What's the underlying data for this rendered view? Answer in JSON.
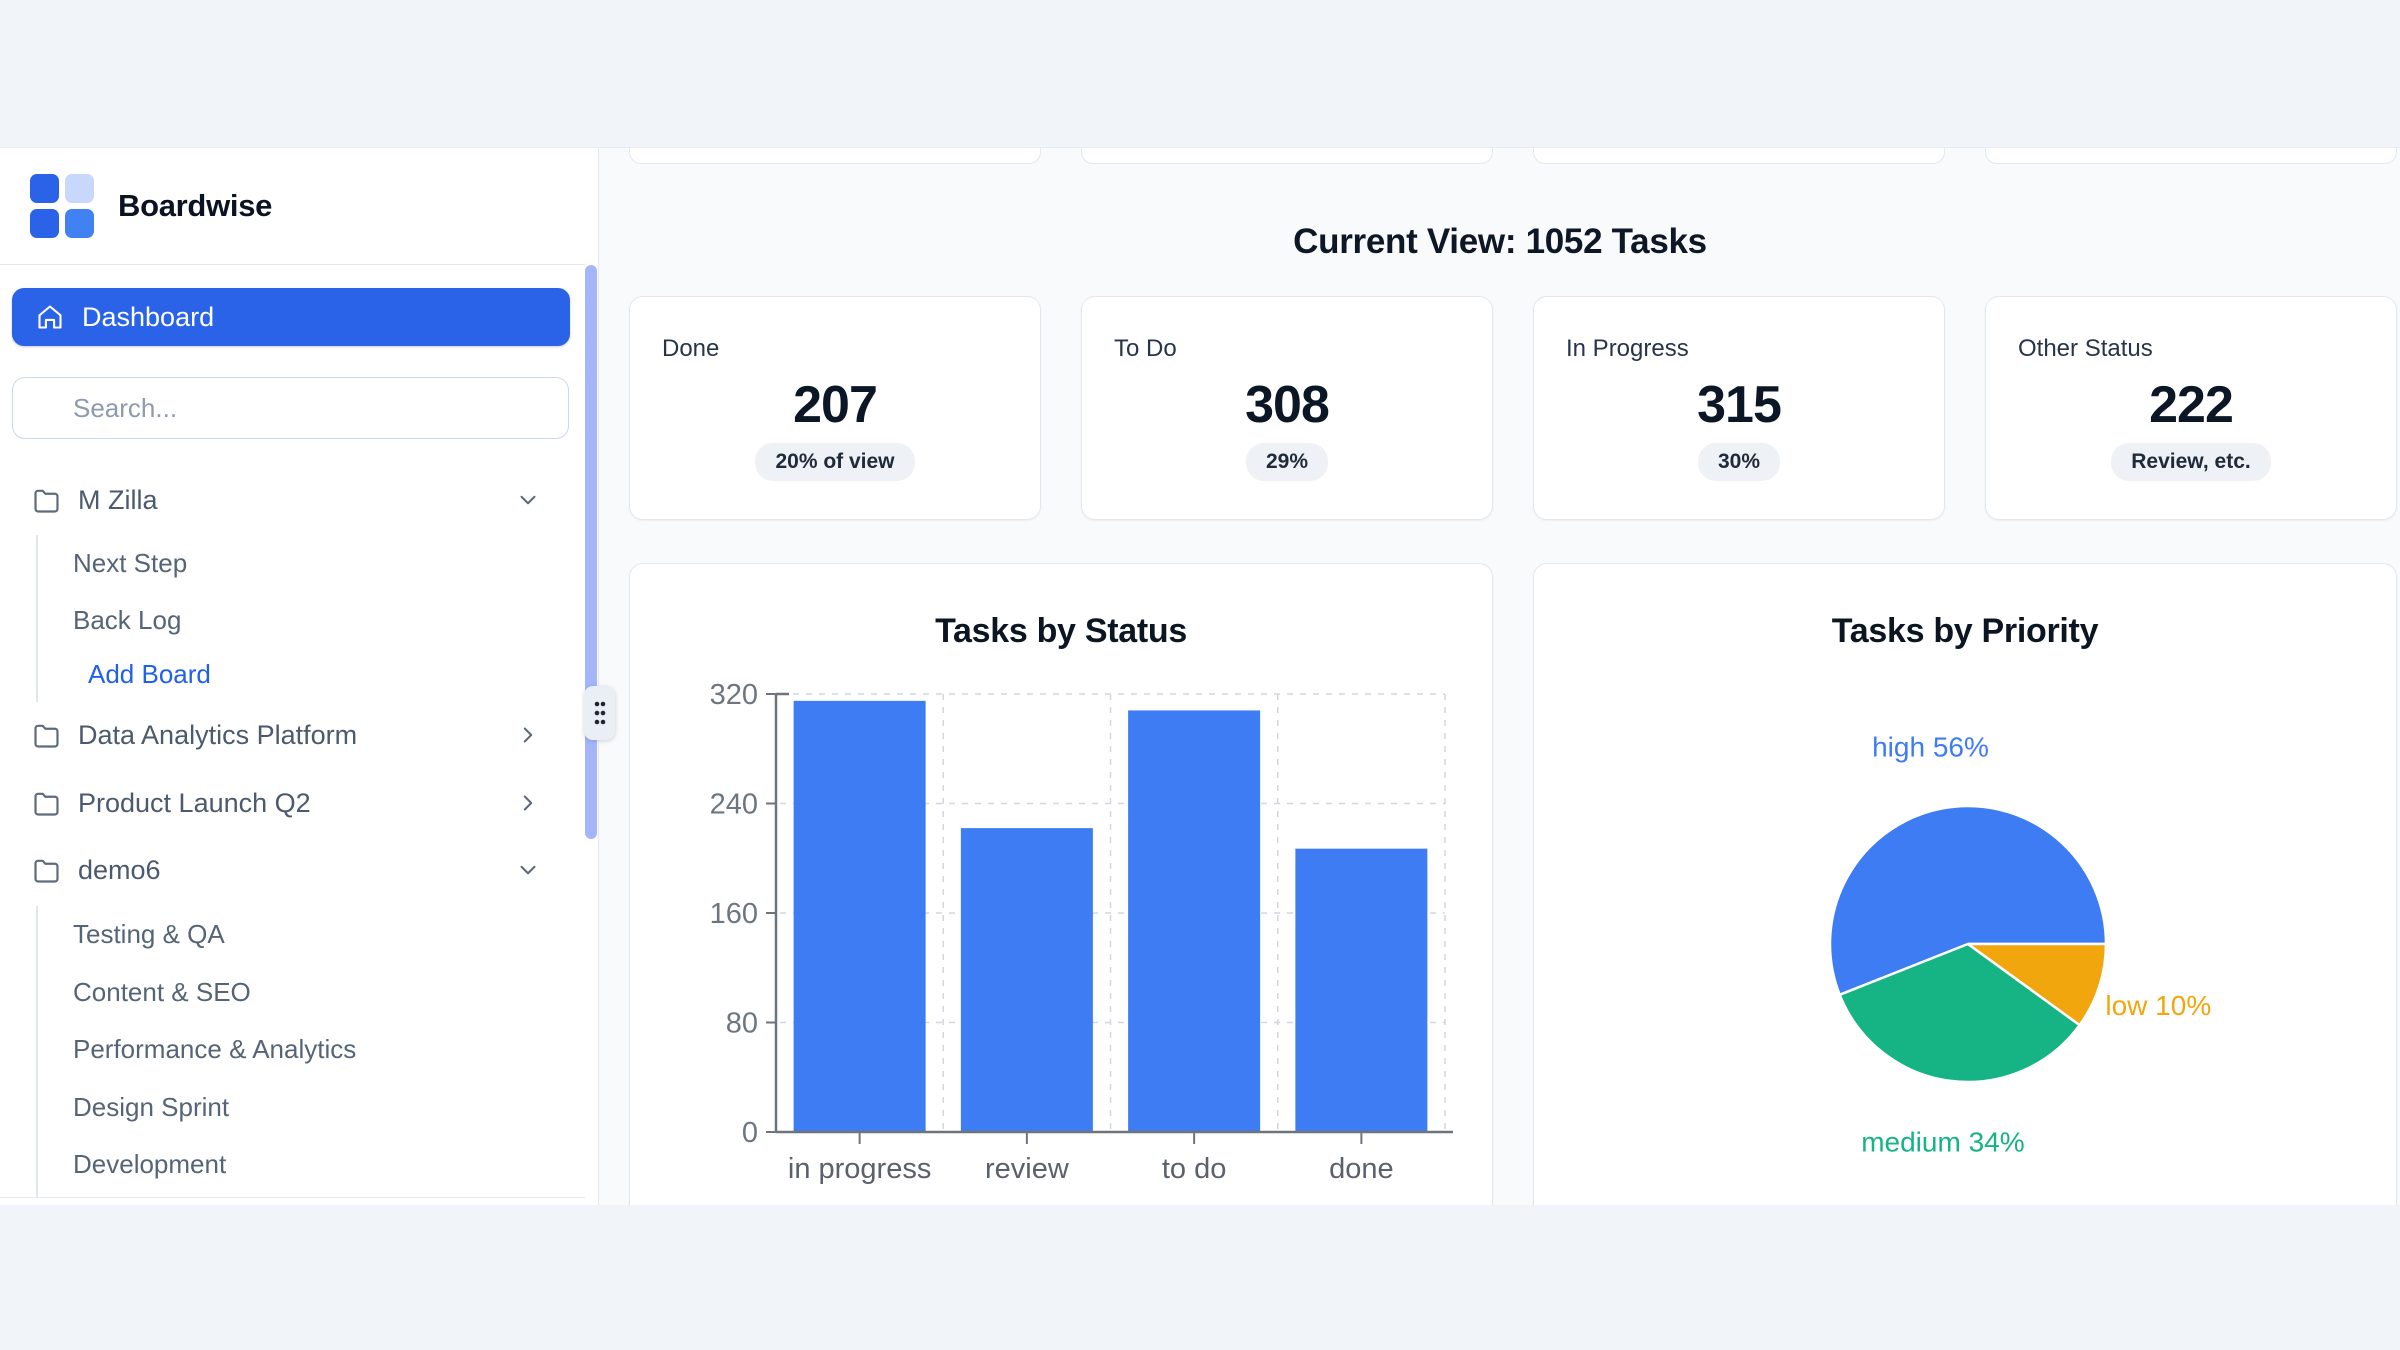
{
  "brand": {
    "name": "Boardwise",
    "logo_colors": {
      "primary": "#2b63e8",
      "light": "#c8d8fa",
      "alt": "#4181f2"
    }
  },
  "sidebar": {
    "dashboard_label": "Dashboard",
    "search": {
      "placeholder": "Search..."
    },
    "projects": [
      {
        "label": "M Zilla",
        "expanded": true,
        "boards": [
          "Next Step",
          "Back Log"
        ],
        "add_action": "Add Board"
      },
      {
        "label": "Data Analytics Platform",
        "expanded": false
      },
      {
        "label": "Product Launch Q2",
        "expanded": false
      },
      {
        "label": "demo6",
        "expanded": true,
        "boards": [
          "Testing & QA",
          "Content & SEO",
          "Performance & Analytics",
          "Design Sprint",
          "Development"
        ]
      }
    ],
    "scrollbar_color": "#a4b5fb"
  },
  "main": {
    "heading": "Current View: 1052 Tasks",
    "stat_cards": [
      {
        "label": "Done",
        "value": "207",
        "badge": "20% of view"
      },
      {
        "label": "To Do",
        "value": "308",
        "badge": "29%"
      },
      {
        "label": "In Progress",
        "value": "315",
        "badge": "30%"
      },
      {
        "label": "Other Status",
        "value": "222",
        "badge": "Review, etc."
      }
    ]
  },
  "chart_data": [
    {
      "type": "bar",
      "title": "Tasks by Status",
      "categories": [
        "in progress",
        "review",
        "to do",
        "done"
      ],
      "values": [
        315,
        222,
        308,
        207
      ],
      "xlabel": "",
      "ylabel": "",
      "ylim": [
        0,
        320
      ],
      "yticks": [
        0,
        80,
        160,
        240,
        320
      ],
      "grid": true,
      "grid_style": "dashed",
      "legend": false,
      "bar_color": "#3d7cf2",
      "axis_color": "#6e747c",
      "tick_label_color": "#6d7680"
    },
    {
      "type": "pie",
      "title": "Tasks by Priority",
      "labels": [
        "high",
        "medium",
        "low"
      ],
      "values": [
        56,
        34,
        10
      ],
      "unit": "%",
      "colors": [
        "#3d7cf2",
        "#16b484",
        "#f2a60e"
      ],
      "start_angle": 0,
      "direction": "counterclockwise",
      "label_position": "outside",
      "legend": false
    }
  ]
}
